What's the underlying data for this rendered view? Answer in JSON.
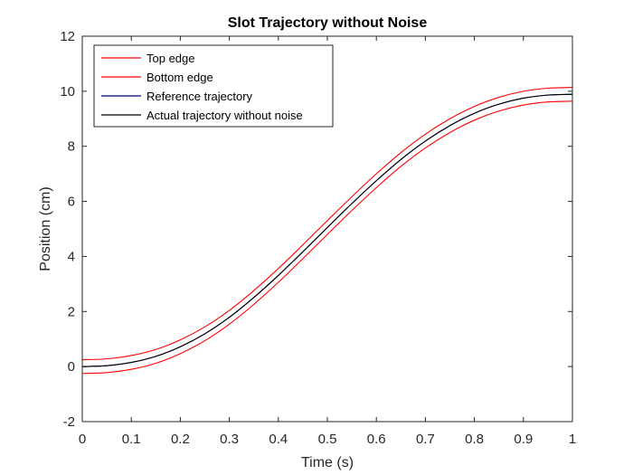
{
  "chart_data": {
    "type": "line",
    "title": "Slot Trajectory without Noise",
    "xlabel": "Time (s)",
    "ylabel": "Position (cm)",
    "xlim": [
      0,
      1
    ],
    "ylim": [
      -2,
      12
    ],
    "xticks": [
      0,
      0.1,
      0.2,
      0.3,
      0.4,
      0.5,
      0.6,
      0.7,
      0.8,
      0.9,
      1
    ],
    "xtick_labels": [
      "0",
      "0.1",
      "0.2",
      "0.3",
      "0.4",
      "0.5",
      "0.6",
      "0.7",
      "0.8",
      "0.9",
      "1"
    ],
    "yticks": [
      -2,
      0,
      2,
      4,
      6,
      8,
      10,
      12
    ],
    "ytick_labels": [
      "-2",
      "0",
      "2",
      "4",
      "6",
      "8",
      "10",
      "12"
    ],
    "grid": false,
    "legend_position": "top-left",
    "x": [
      0,
      0.05,
      0.1,
      0.15,
      0.2,
      0.25,
      0.3,
      0.35,
      0.4,
      0.45,
      0.5,
      0.55,
      0.6,
      0.65,
      0.7,
      0.75,
      0.8,
      0.85,
      0.9,
      0.95,
      1
    ],
    "series": [
      {
        "name": "Top edge",
        "color": "#ff0000",
        "values": [
          0.25,
          0.28,
          0.4,
          0.62,
          0.97,
          1.44,
          2.04,
          2.76,
          3.56,
          4.42,
          5.3,
          6.17,
          7.0,
          7.77,
          8.44,
          9.0,
          9.45,
          9.78,
          10.0,
          10.11,
          10.14
        ]
      },
      {
        "name": "Bottom edge",
        "color": "#ff0000",
        "values": [
          -0.25,
          -0.22,
          -0.1,
          0.12,
          0.47,
          0.94,
          1.54,
          2.26,
          3.06,
          3.92,
          4.8,
          5.67,
          6.5,
          7.27,
          7.94,
          8.5,
          8.95,
          9.28,
          9.5,
          9.61,
          9.64
        ]
      },
      {
        "name": "Reference trajectory",
        "color": "#00007f",
        "values": [
          0.0,
          0.03,
          0.15,
          0.37,
          0.72,
          1.19,
          1.79,
          2.51,
          3.31,
          4.17,
          5.05,
          5.92,
          6.75,
          7.52,
          8.19,
          8.75,
          9.2,
          9.53,
          9.75,
          9.86,
          9.89
        ]
      },
      {
        "name": "Actual trajectory without noise",
        "color": "#000000",
        "values": [
          0.0,
          0.03,
          0.15,
          0.37,
          0.72,
          1.19,
          1.79,
          2.51,
          3.31,
          4.17,
          5.05,
          5.92,
          6.75,
          7.52,
          8.19,
          8.75,
          9.2,
          9.53,
          9.75,
          9.86,
          9.89
        ]
      }
    ]
  }
}
